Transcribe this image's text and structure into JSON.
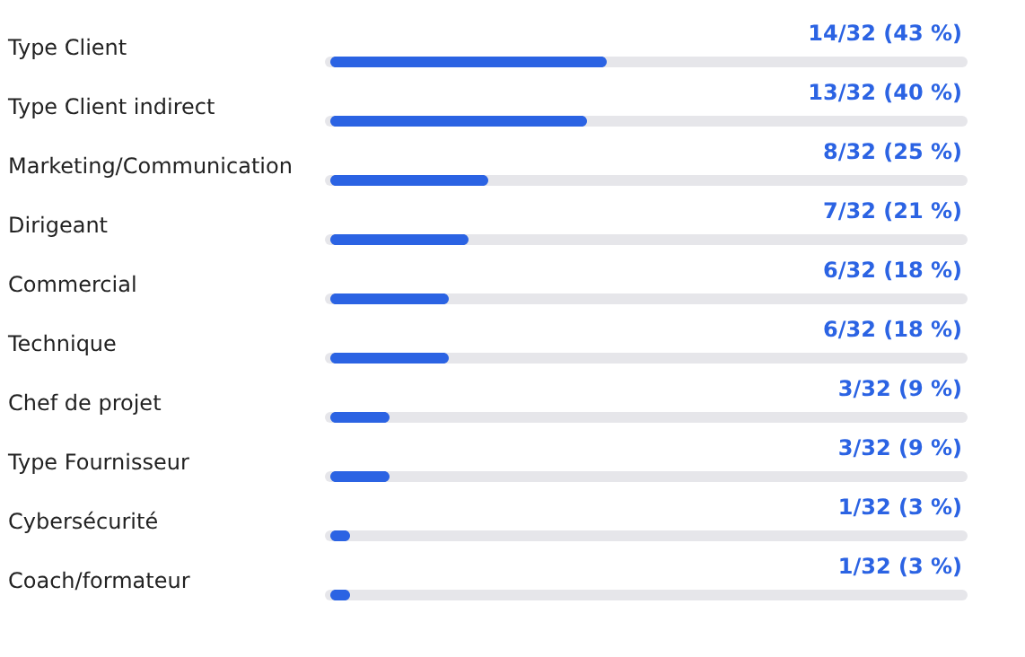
{
  "chart_data": {
    "type": "bar",
    "orientation": "horizontal",
    "categories": [
      "Type Client",
      "Type Client indirect",
      "Marketing/Communication",
      "Dirigeant",
      "Commercial",
      "Technique",
      "Chef de projet",
      "Type Fournisseur",
      "Cybersécurité",
      "Coach/formateur"
    ],
    "values": [
      14,
      13,
      8,
      7,
      6,
      6,
      3,
      3,
      1,
      1
    ],
    "value_labels": [
      "14/32 (43 %)",
      "13/32 (40 %)",
      "8/32 (25 %)",
      "7/32 (21 %)",
      "6/32 (18 %)",
      "6/32 (18 %)",
      "3/32 (9 %)",
      "3/32 (9 %)",
      "1/32 (3 %)",
      "1/32 (3 %)"
    ],
    "color": "#2b63e3",
    "xlim": [
      0,
      32
    ],
    "tick_labels": "y"
  }
}
